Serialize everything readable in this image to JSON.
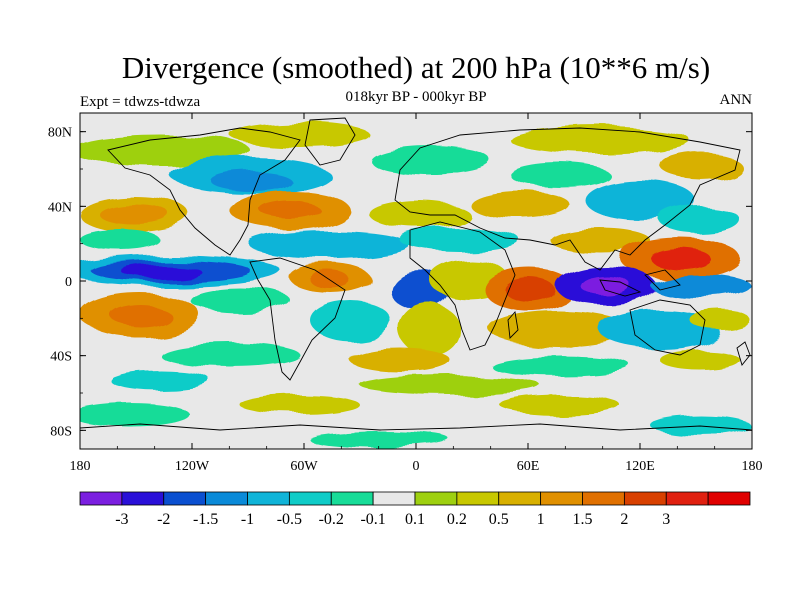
{
  "title": "Divergence (smoothed) at 200 hPa (10**6 m/s)",
  "subtitle": "018kyr BP - 000kyr BP",
  "left_label": "Expt = tdwzs-tdwza",
  "right_label": "ANN",
  "map": {
    "lon_range": [
      -180,
      180
    ],
    "lat_range": [
      -90,
      90
    ],
    "projection": "cylindrical-equidistant",
    "x_ticks": [
      "180",
      "120W",
      "60W",
      "0",
      "60E",
      "120E",
      "180"
    ],
    "y_ticks": [
      "80N",
      "40N",
      "0",
      "40S",
      "80S"
    ]
  },
  "colorbar": {
    "colors": [
      "#7b1fe0",
      "#2a10d8",
      "#0a4fd0",
      "#0a8ad8",
      "#10b4d8",
      "#10ccc8",
      "#18dc98",
      "#e8e8e8",
      "#9ed010",
      "#c8c800",
      "#d8b000",
      "#e09000",
      "#e07000",
      "#d84000",
      "#e02010",
      "#e00000"
    ],
    "labels": [
      "-3",
      "-2",
      "-1.5",
      "-1",
      "-0.5",
      "-0.2",
      "-0.1",
      "0.1",
      "0.2",
      "0.5",
      "1",
      "1.5",
      "2",
      "3"
    ]
  }
}
